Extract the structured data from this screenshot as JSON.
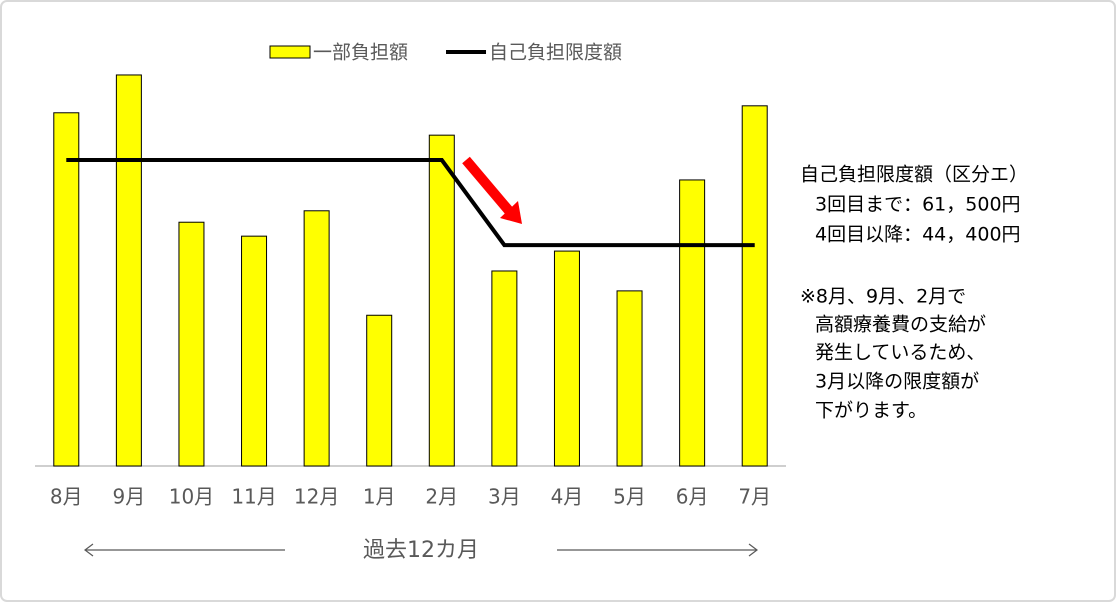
{
  "chart_data": {
    "type": "bar",
    "categories": [
      "8月",
      "9月",
      "10月",
      "11月",
      "12月",
      "1月",
      "2月",
      "3月",
      "4月",
      "5月",
      "6月",
      "7月"
    ],
    "series": [
      {
        "name": "一部負担額",
        "color": "#ffff00",
        "values": [
          71000,
          78600,
          49000,
          46200,
          51300,
          30300,
          66500,
          39200,
          43200,
          35200,
          57500,
          72400
        ]
      },
      {
        "name": "自己負担限度額",
        "type": "line",
        "color": "#000000",
        "values": [
          61500,
          61500,
          61500,
          61500,
          61500,
          61500,
          61500,
          44400,
          44400,
          44400,
          44400,
          44400
        ]
      }
    ],
    "ylim": [
      0,
      80000
    ],
    "xlabel": "過去12カ月",
    "annotations": [
      "自己負担限度額（区分エ）",
      "3回目まで：61，500円",
      "4回目以降：44，400円",
      "※8月、9月、2月で",
      "高額療養費の支給が",
      "発生しているため、",
      "3月以降の限度額が",
      "下がります。"
    ]
  }
}
